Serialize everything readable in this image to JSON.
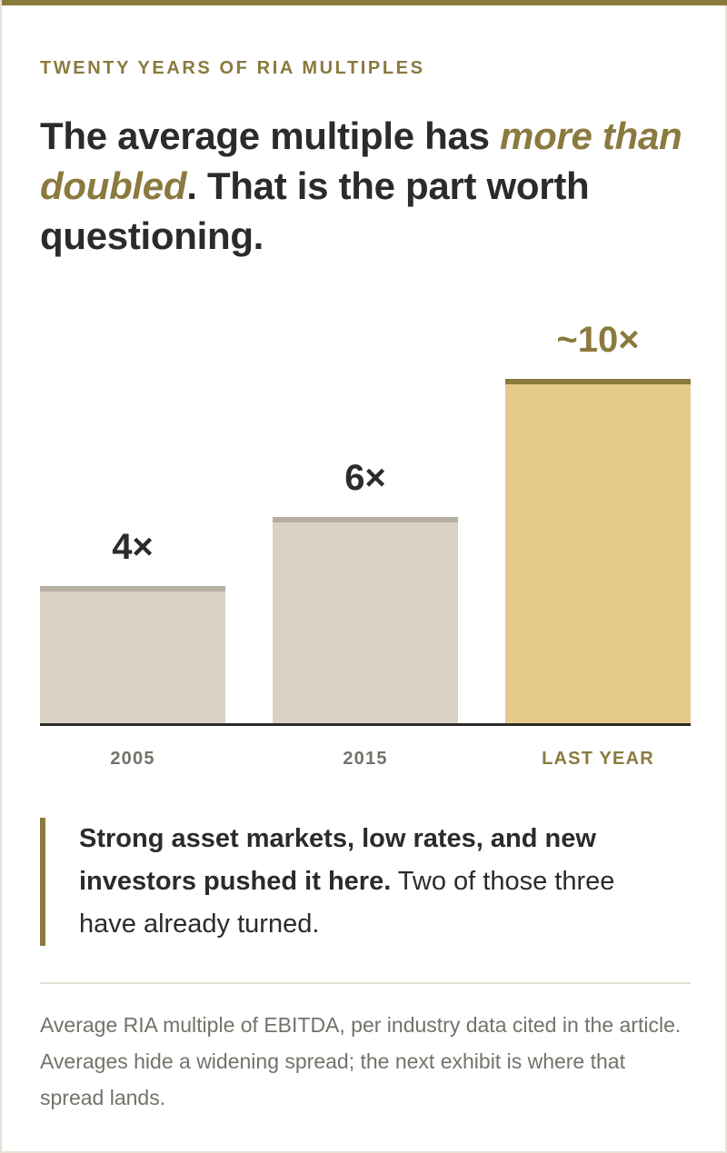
{
  "header": {
    "eyebrow": "TWENTY YEARS OF RIA MULTIPLES",
    "headline_pre": "The average multiple has ",
    "headline_emph": "more than doubled",
    "headline_post": ". That is the part worth questioning."
  },
  "chart_data": {
    "type": "bar",
    "title": "",
    "xlabel": "",
    "ylabel": "",
    "categories": [
      "2005",
      "2015",
      "LAST YEAR"
    ],
    "values": [
      4,
      6,
      10
    ],
    "value_labels": [
      "4×",
      "6×",
      "~10×"
    ],
    "ylim": [
      0,
      10
    ],
    "highlight_index": 2,
    "grid": false,
    "colors": {
      "bar": "#dad2c4",
      "bar_cap": "#b6ae9f",
      "highlight_bar": "#e4cb8c",
      "highlight_cap": "#8a7a3e",
      "label": "#2c2b29",
      "highlight_label": "#8a7a3e",
      "tick": "#75716a",
      "baseline": "#2c2b29"
    }
  },
  "callout": {
    "bold": "Strong asset markets, low rates, and new investors pushed it here.",
    "rest": " Two of those three have already turned."
  },
  "footnote": "Average RIA multiple of EBITDA, per industry data cited in the article. Averages hide a widening spread; the next exhibit is where that spread lands.",
  "colors": {
    "accent": "#8a7a3e",
    "text": "#2c2b29",
    "muted": "#75716a"
  }
}
